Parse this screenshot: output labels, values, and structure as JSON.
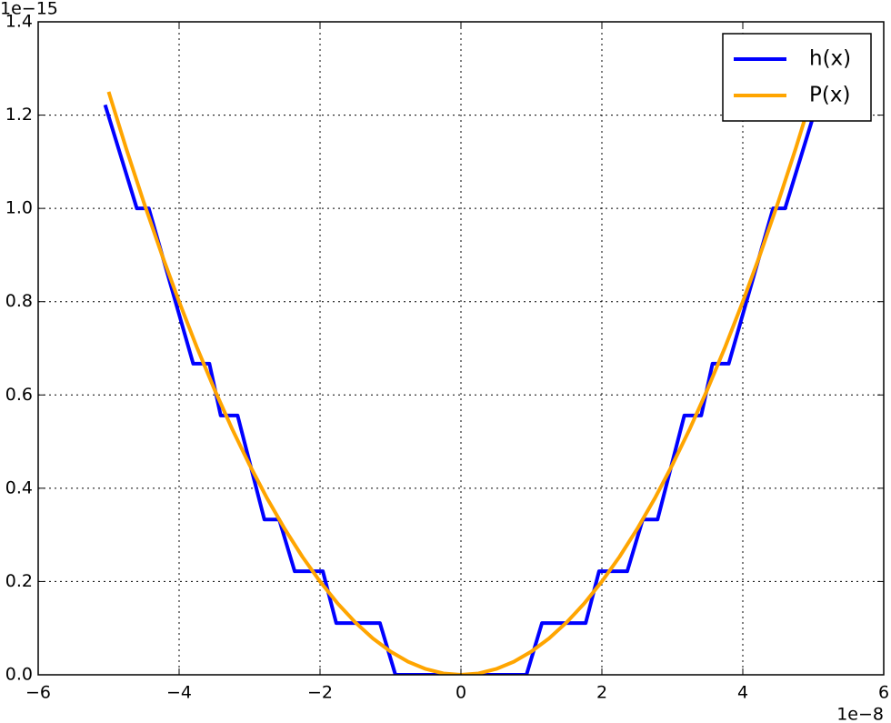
{
  "chart_data": {
    "type": "line",
    "x_offset_label": "1e−8",
    "y_offset_label": "1e−15",
    "xlim": [
      -6,
      6
    ],
    "ylim": [
      0,
      1.4
    ],
    "xticks": [
      {
        "value": -6,
        "label": "−6"
      },
      {
        "value": -4,
        "label": "−4"
      },
      {
        "value": -2,
        "label": "−2"
      },
      0,
      2,
      4,
      6
    ],
    "yticks": [
      {
        "value": 0,
        "label": "0.0"
      },
      0.2,
      0.4,
      0.6,
      0.8,
      {
        "value": 1,
        "label": "1.0"
      },
      1.2,
      1.4
    ],
    "grid": true,
    "legend": "upper right",
    "series": [
      {
        "name": "h(x)",
        "color": "#0000ff",
        "x": [
          -5.05,
          -4.6,
          -4.43,
          -3.8,
          -3.57,
          -3.41,
          -3.17,
          -2.79,
          -2.58,
          -2.36,
          -1.96,
          -1.77,
          -1.15,
          -0.93,
          0.93,
          1.15,
          1.77,
          1.96,
          2.36,
          2.58,
          2.79,
          3.17,
          3.41,
          3.57,
          3.8,
          4.43,
          4.6,
          5.05
        ],
        "values": [
          1.222,
          1.0,
          1.0,
          0.667,
          0.667,
          0.556,
          0.556,
          0.333,
          0.333,
          0.222,
          0.222,
          0.111,
          0.111,
          0,
          0,
          0.111,
          0.111,
          0.222,
          0.222,
          0.333,
          0.333,
          0.556,
          0.556,
          0.667,
          0.667,
          1.0,
          1.0,
          1.222
        ]
      },
      {
        "name": "P(x)",
        "color": "#ffa500",
        "x": [
          -5,
          -4.75,
          -4.5,
          -4.25,
          -4,
          -3.75,
          -3.5,
          -3.25,
          -3,
          -2.75,
          -2.5,
          -2.25,
          -2,
          -1.75,
          -1.5,
          -1.25,
          -1,
          -0.75,
          -0.5,
          -0.25,
          0,
          0.25,
          0.5,
          0.75,
          1,
          1.25,
          1.5,
          1.75,
          2,
          2.25,
          2.5,
          2.75,
          3,
          3.25,
          3.5,
          3.75,
          4,
          4.25,
          4.5,
          4.75,
          5
        ],
        "values": [
          1.25,
          1.128,
          1.0125,
          0.903,
          0.8,
          0.703,
          0.6125,
          0.528,
          0.45,
          0.378,
          0.3125,
          0.253,
          0.2,
          0.153,
          0.1125,
          0.078,
          0.05,
          0.028,
          0.0125,
          0.003,
          0,
          0.003,
          0.0125,
          0.028,
          0.05,
          0.078,
          0.1125,
          0.153,
          0.2,
          0.253,
          0.3125,
          0.378,
          0.45,
          0.528,
          0.6125,
          0.703,
          0.8,
          0.903,
          1.0125,
          1.128,
          1.25
        ]
      }
    ]
  }
}
